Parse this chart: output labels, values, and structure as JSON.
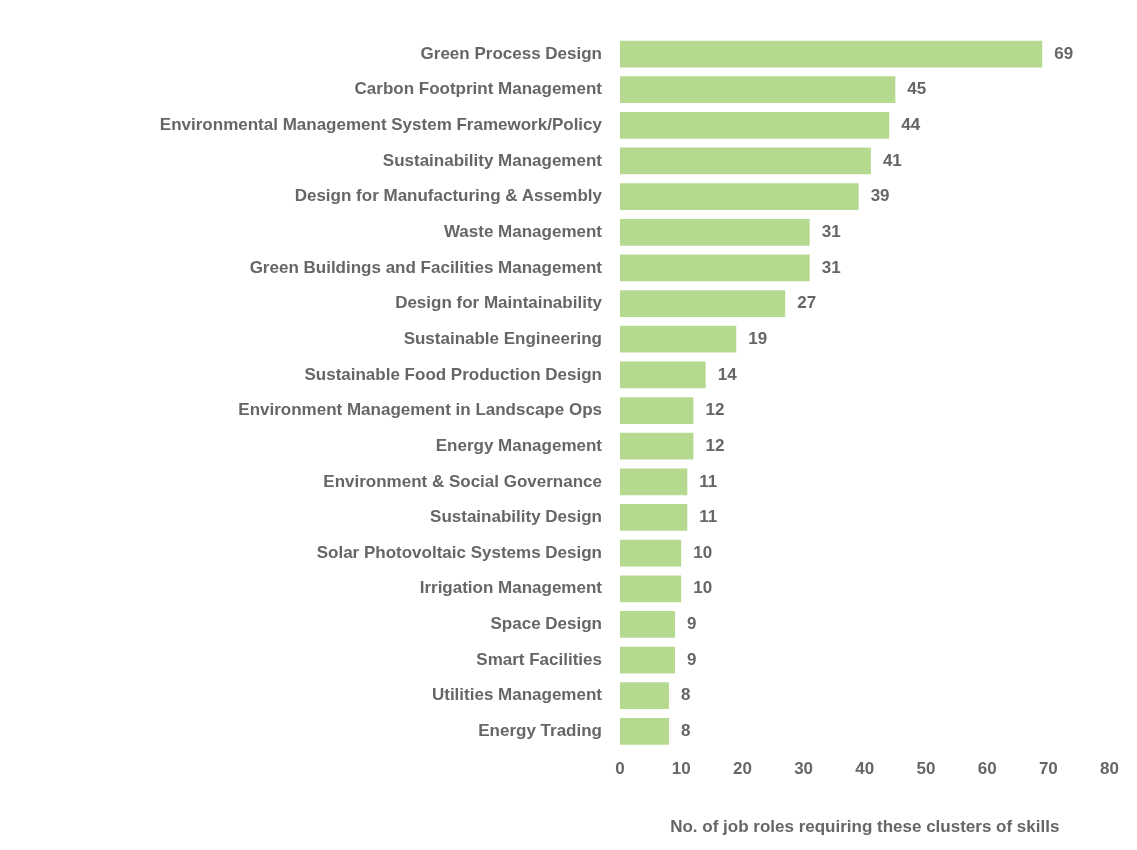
{
  "chart_data": {
    "type": "bar",
    "orientation": "horizontal",
    "xlabel": "No. of job roles requiring these clusters of skills",
    "categories": [
      "Green Process Design",
      "Carbon Footprint Management",
      "Environmental Management System Framework/Policy",
      "Sustainability Management",
      "Design for Manufacturing & Assembly",
      "Waste Management",
      "Green Buildings and Facilities Management",
      "Design for Maintainability",
      "Sustainable Engineering",
      "Sustainable Food Production Design",
      "Environment Management in Landscape Ops",
      "Energy Management",
      "Environment & Social Governance",
      "Sustainability Design",
      "Solar Photovoltaic Systems Design",
      "Irrigation Management",
      "Space Design",
      "Smart Facilities",
      "Utilities Management",
      "Energy Trading"
    ],
    "values": [
      69,
      45,
      44,
      41,
      39,
      31,
      31,
      27,
      19,
      14,
      12,
      12,
      11,
      11,
      10,
      10,
      9,
      9,
      8,
      8
    ],
    "color": "#b5d98f",
    "xlim": [
      0,
      80
    ],
    "xticks": [
      0,
      10,
      20,
      30,
      40,
      50,
      60,
      70,
      80
    ],
    "grid": false,
    "legend": false,
    "data_labels": true
  }
}
